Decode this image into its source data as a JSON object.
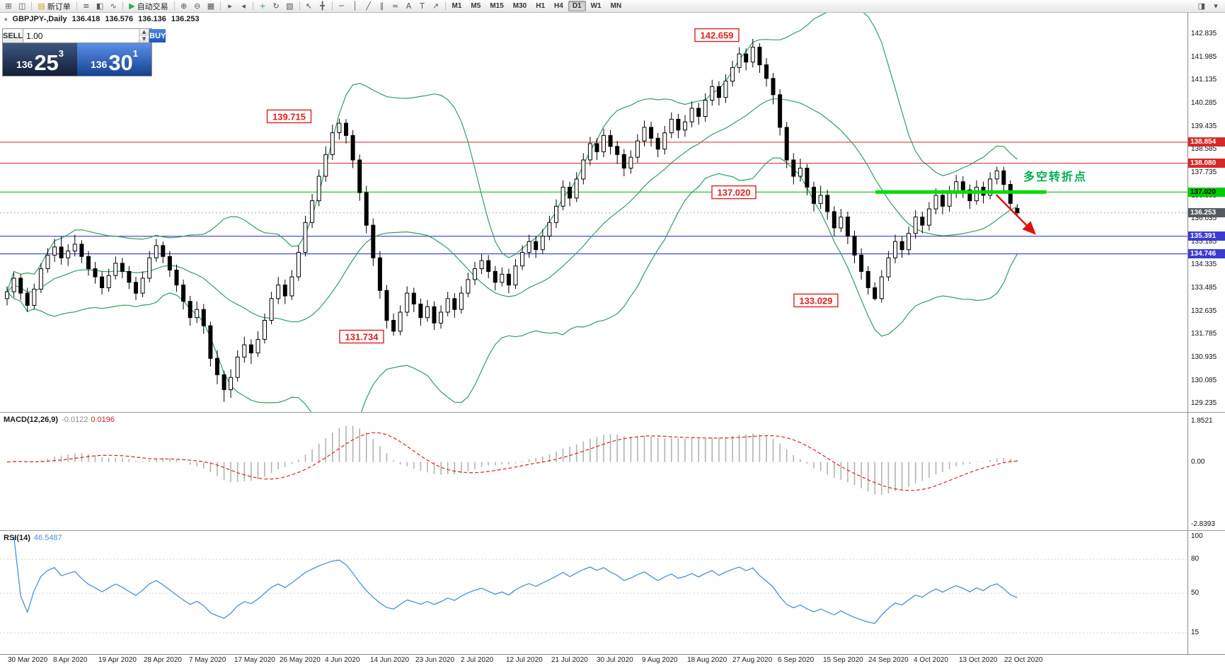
{
  "toolbar": {
    "items": [
      {
        "type": "icon",
        "name": "new-chart-icon",
        "glyph": "⊞"
      },
      {
        "type": "icon",
        "name": "window-layout-icon",
        "glyph": "◫"
      },
      {
        "type": "sep"
      },
      {
        "type": "button",
        "name": "new-order-button",
        "glyph": "▤",
        "glyph_color": "#c9a227",
        "label": "新订单"
      },
      {
        "type": "sep"
      },
      {
        "type": "icon",
        "name": "bar-chart-icon",
        "glyph": "≡"
      },
      {
        "type": "icon",
        "name": "candlestick-chart-icon",
        "glyph": "◧"
      },
      {
        "type": "icon",
        "name": "line-chart-icon",
        "glyph": "∿"
      },
      {
        "type": "sep"
      },
      {
        "type": "button",
        "name": "autotrading-button",
        "glyph": "▶",
        "glyph_color": "#2fa84f",
        "label": "自动交易"
      },
      {
        "type": "sep"
      },
      {
        "type": "icon",
        "name": "zoom-in-icon",
        "glyph": "⊕"
      },
      {
        "type": "icon",
        "name": "zoom-out-icon",
        "glyph": "⊖"
      },
      {
        "type": "icon",
        "name": "grid-icon",
        "glyph": "▦"
      },
      {
        "type": "sep"
      },
      {
        "type": "icon",
        "name": "auto-scroll-icon",
        "glyph": "▸"
      },
      {
        "type": "icon",
        "name": "chart-shift-icon",
        "glyph": "◂"
      },
      {
        "type": "sep"
      },
      {
        "type": "icon",
        "name": "indicators-icon",
        "glyph": "+",
        "glyph_color": "#2fa84f"
      },
      {
        "type": "icon",
        "name": "periods-icon",
        "glyph": "↻"
      },
      {
        "type": "icon",
        "name": "templates-icon",
        "glyph": "▧"
      },
      {
        "type": "sep"
      },
      {
        "type": "icon",
        "name": "cursor-icon",
        "glyph": "↖"
      },
      {
        "type": "icon",
        "name": "crosshair-icon",
        "glyph": "╋"
      },
      {
        "type": "sep"
      },
      {
        "type": "icon",
        "name": "horizontal-line-icon",
        "glyph": "─"
      },
      {
        "type": "icon",
        "name": "vertical-line-icon",
        "glyph": "│"
      },
      {
        "type": "icon",
        "name": "trendline-icon",
        "glyph": "╱"
      },
      {
        "type": "icon",
        "name": "channel-icon",
        "glyph": "∥"
      },
      {
        "type": "icon",
        "name": "fibonacci-icon",
        "glyph": "≈"
      },
      {
        "type": "icon",
        "name": "text-icon",
        "glyph": "A"
      },
      {
        "type": "icon",
        "name": "text-label-icon",
        "glyph": "T"
      },
      {
        "type": "icon",
        "name": "arrow-objects-icon",
        "glyph": "↗"
      },
      {
        "type": "sep"
      }
    ],
    "timeframes": [
      {
        "label": "M1"
      },
      {
        "label": "M5"
      },
      {
        "label": "M15"
      },
      {
        "label": "M30"
      },
      {
        "label": "H1"
      },
      {
        "label": "H4"
      },
      {
        "label": "D1",
        "active": true
      },
      {
        "label": "W1"
      },
      {
        "label": "MN"
      }
    ],
    "right_icons": [
      {
        "name": "chart-panel-icon",
        "glyph": "◨"
      },
      {
        "name": "more-options-icon",
        "glyph": "▾"
      }
    ]
  },
  "quote_bar": {
    "symbol": "GBPJPY-,Daily",
    "open": "136.418",
    "high": "136.576",
    "low": "136.136",
    "close": "136.253"
  },
  "trade_panel": {
    "sell_label": "SELL",
    "buy_label": "BUY",
    "volume": "1.00",
    "sell_big_figure": "136",
    "sell_pips": "25",
    "sell_pipette": "3",
    "buy_big_figure": "136",
    "buy_pips": "30",
    "buy_pipette": "1"
  },
  "macd_panel": {
    "label": "MACD(12,26,9)",
    "main_value": "-0.0122",
    "signal_value": "0.0196",
    "scale": [
      "1.8521",
      "0.00",
      "-2.8393"
    ]
  },
  "rsi_panel": {
    "label": "RSI(14)",
    "value": "46.5487",
    "scale": [
      "100",
      "80",
      "50",
      "15"
    ]
  },
  "chart_data": {
    "type": "candlestick",
    "symbol": "GBPJPY",
    "timeframe": "Daily",
    "price_axis": {
      "top": 142.835,
      "step": 0.85,
      "ticks": [
        "142.835",
        "141.985",
        "141.135",
        "140.285",
        "139.435",
        "138.585",
        "137.735",
        "136.885",
        "136.035",
        "135.185",
        "134.335",
        "133.485",
        "132.635",
        "131.785",
        "130.935",
        "130.085",
        "129.235"
      ]
    },
    "date_labels": [
      "30 Mar 2020",
      "8 Apr 2020",
      "19 Apr 2020",
      "28 Apr 2020",
      "7 May 2020",
      "17 May 2020",
      "26 May 2020",
      "4 Jun 2020",
      "14 Jun 2020",
      "23 Jun 2020",
      "2 Jul 2020",
      "12 Jul 2020",
      "21 Jul 2020",
      "30 Jul 2020",
      "9 Aug 2020",
      "18 Aug 2020",
      "27 Aug 2020",
      "6 Sep 2020",
      "15 Sep 2020",
      "24 Sep 2020",
      "4 Oct 2020",
      "13 Oct 2020",
      "22 Oct 2020"
    ],
    "candle_style": {
      "up_fill": "#ffffff",
      "down_fill": "#000000",
      "outline": "#000000"
    },
    "candles": [
      [
        133.1,
        133.55,
        132.85,
        133.35
      ],
      [
        133.35,
        134.05,
        133.15,
        133.85
      ],
      [
        133.85,
        134.0,
        133.05,
        133.3
      ],
      [
        133.3,
        133.5,
        132.6,
        132.85
      ],
      [
        132.85,
        133.65,
        132.7,
        133.45
      ],
      [
        133.45,
        134.4,
        133.3,
        134.2
      ],
      [
        134.2,
        134.95,
        134.05,
        134.7
      ],
      [
        134.7,
        135.3,
        134.45,
        135.0
      ],
      [
        135.0,
        135.4,
        134.35,
        134.6
      ],
      [
        134.6,
        135.1,
        134.3,
        134.85
      ],
      [
        134.85,
        135.45,
        134.65,
        135.1
      ],
      [
        135.1,
        135.25,
        134.4,
        134.65
      ],
      [
        134.65,
        134.85,
        133.95,
        134.2
      ],
      [
        134.2,
        134.45,
        133.65,
        133.9
      ],
      [
        133.9,
        134.1,
        133.25,
        133.5
      ],
      [
        133.5,
        134.2,
        133.35,
        133.95
      ],
      [
        133.95,
        134.65,
        133.8,
        134.4
      ],
      [
        134.4,
        134.6,
        133.85,
        134.1
      ],
      [
        134.1,
        134.3,
        133.45,
        133.7
      ],
      [
        133.7,
        133.9,
        133.05,
        133.3
      ],
      [
        133.3,
        134.1,
        133.15,
        133.85
      ],
      [
        133.85,
        134.85,
        133.7,
        134.6
      ],
      [
        134.6,
        135.3,
        134.45,
        135.05
      ],
      [
        135.05,
        135.2,
        134.4,
        134.65
      ],
      [
        134.65,
        134.85,
        133.9,
        134.15
      ],
      [
        134.15,
        134.35,
        133.35,
        133.6
      ],
      [
        133.6,
        133.8,
        132.7,
        133.0
      ],
      [
        133.0,
        133.2,
        132.1,
        132.4
      ],
      [
        132.4,
        133.0,
        132.2,
        132.7
      ],
      [
        132.7,
        132.9,
        131.8,
        132.1
      ],
      [
        132.1,
        132.25,
        130.6,
        130.9
      ],
      [
        130.9,
        131.2,
        129.95,
        130.3
      ],
      [
        130.3,
        130.45,
        129.3,
        129.75
      ],
      [
        129.75,
        130.5,
        129.45,
        130.2
      ],
      [
        130.2,
        131.2,
        130.05,
        130.95
      ],
      [
        130.95,
        131.7,
        130.75,
        131.4
      ],
      [
        131.4,
        131.6,
        130.7,
        131.1
      ],
      [
        131.1,
        131.9,
        130.95,
        131.6
      ],
      [
        131.6,
        132.55,
        131.45,
        132.3
      ],
      [
        132.3,
        133.35,
        132.15,
        133.1
      ],
      [
        133.1,
        133.9,
        132.9,
        133.6
      ],
      [
        133.6,
        133.8,
        132.9,
        133.2
      ],
      [
        133.2,
        134.15,
        133.05,
        133.9
      ],
      [
        133.9,
        135.05,
        133.75,
        134.8
      ],
      [
        134.8,
        136.15,
        134.65,
        135.9
      ],
      [
        135.9,
        136.95,
        135.7,
        136.7
      ],
      [
        136.7,
        137.85,
        136.5,
        137.6
      ],
      [
        137.6,
        138.7,
        137.4,
        138.4
      ],
      [
        138.4,
        139.5,
        138.2,
        139.2
      ],
      [
        139.2,
        139.715,
        138.95,
        139.55
      ],
      [
        139.55,
        139.7,
        138.8,
        139.1
      ],
      [
        139.1,
        139.3,
        137.9,
        138.2
      ],
      [
        138.2,
        138.4,
        136.7,
        137.0
      ],
      [
        137.0,
        137.25,
        135.5,
        135.8
      ],
      [
        135.8,
        136.05,
        134.3,
        134.6
      ],
      [
        134.6,
        134.85,
        133.1,
        133.4
      ],
      [
        133.4,
        133.6,
        132.0,
        132.3
      ],
      [
        132.3,
        132.55,
        131.734,
        131.9
      ],
      [
        131.9,
        132.85,
        131.75,
        132.6
      ],
      [
        132.6,
        133.55,
        132.45,
        133.3
      ],
      [
        133.3,
        133.5,
        132.6,
        132.9
      ],
      [
        132.9,
        133.1,
        132.1,
        132.4
      ],
      [
        132.4,
        133.05,
        132.25,
        132.8
      ],
      [
        132.8,
        133.0,
        131.95,
        132.2
      ],
      [
        132.2,
        132.85,
        132.0,
        132.6
      ],
      [
        132.6,
        133.35,
        132.45,
        133.1
      ],
      [
        133.1,
        133.3,
        132.4,
        132.7
      ],
      [
        132.7,
        133.55,
        132.55,
        133.3
      ],
      [
        133.3,
        134.05,
        133.15,
        133.8
      ],
      [
        133.8,
        134.45,
        133.6,
        134.2
      ],
      [
        134.2,
        134.75,
        134.0,
        134.5
      ],
      [
        134.5,
        134.7,
        133.85,
        134.1
      ],
      [
        134.1,
        134.3,
        133.4,
        133.7
      ],
      [
        133.7,
        134.25,
        133.55,
        134.0
      ],
      [
        134.0,
        134.2,
        133.3,
        133.6
      ],
      [
        133.6,
        134.55,
        133.45,
        134.3
      ],
      [
        134.3,
        135.05,
        134.15,
        134.8
      ],
      [
        134.8,
        135.45,
        134.6,
        135.2
      ],
      [
        135.2,
        135.4,
        134.6,
        134.9
      ],
      [
        134.9,
        135.65,
        134.75,
        135.4
      ],
      [
        135.4,
        136.15,
        135.25,
        135.9
      ],
      [
        135.9,
        136.75,
        135.7,
        136.5
      ],
      [
        136.5,
        137.45,
        136.35,
        137.2
      ],
      [
        137.2,
        137.4,
        136.5,
        136.8
      ],
      [
        136.8,
        137.75,
        136.65,
        137.5
      ],
      [
        137.5,
        138.45,
        137.3,
        138.2
      ],
      [
        138.2,
        139.05,
        138.0,
        138.8
      ],
      [
        138.8,
        139.0,
        138.2,
        138.5
      ],
      [
        138.5,
        139.35,
        138.3,
        139.1
      ],
      [
        139.1,
        139.3,
        138.4,
        138.7
      ],
      [
        138.7,
        138.9,
        138.05,
        138.4
      ],
      [
        138.4,
        138.6,
        137.6,
        137.9
      ],
      [
        137.9,
        138.55,
        137.7,
        138.3
      ],
      [
        138.3,
        139.15,
        138.1,
        138.9
      ],
      [
        138.9,
        139.65,
        138.7,
        139.4
      ],
      [
        139.4,
        139.6,
        138.7,
        139.0
      ],
      [
        139.0,
        139.2,
        138.3,
        138.6
      ],
      [
        138.6,
        139.45,
        138.4,
        139.2
      ],
      [
        139.2,
        139.95,
        139.0,
        139.7
      ],
      [
        139.7,
        139.9,
        139.0,
        139.3
      ],
      [
        139.3,
        139.85,
        139.05,
        139.6
      ],
      [
        139.6,
        140.35,
        139.4,
        140.1
      ],
      [
        140.1,
        140.3,
        139.5,
        139.8
      ],
      [
        139.8,
        140.65,
        139.6,
        140.4
      ],
      [
        140.4,
        141.15,
        140.2,
        140.9
      ],
      [
        140.9,
        141.1,
        140.2,
        140.5
      ],
      [
        140.5,
        141.35,
        140.3,
        141.1
      ],
      [
        141.1,
        141.85,
        140.9,
        141.6
      ],
      [
        141.6,
        142.35,
        141.4,
        142.1
      ],
      [
        142.1,
        142.3,
        141.5,
        141.8
      ],
      [
        141.8,
        142.659,
        141.6,
        142.35
      ],
      [
        142.35,
        142.5,
        141.4,
        141.7
      ],
      [
        141.7,
        141.95,
        140.9,
        141.2
      ],
      [
        141.2,
        141.4,
        140.25,
        140.6
      ],
      [
        140.6,
        140.8,
        139.1,
        139.4
      ],
      [
        139.4,
        139.6,
        137.9,
        138.2
      ],
      [
        138.2,
        138.45,
        137.3,
        137.6
      ],
      [
        137.6,
        138.25,
        137.4,
        137.9
      ],
      [
        137.9,
        138.05,
        136.9,
        137.2
      ],
      [
        137.2,
        137.4,
        136.3,
        136.6
      ],
      [
        136.6,
        137.25,
        136.4,
        136.9
      ],
      [
        136.9,
        137.1,
        136.0,
        136.3
      ],
      [
        136.3,
        136.5,
        135.4,
        135.7
      ],
      [
        135.7,
        136.4,
        135.55,
        136.1
      ],
      [
        136.1,
        136.3,
        135.1,
        135.4
      ],
      [
        135.4,
        135.6,
        134.4,
        134.7
      ],
      [
        134.7,
        134.95,
        133.8,
        134.1
      ],
      [
        134.1,
        134.3,
        133.25,
        133.5
      ],
      [
        133.5,
        133.7,
        133.029,
        133.1
      ],
      [
        133.1,
        134.15,
        132.95,
        133.9
      ],
      [
        133.9,
        134.85,
        133.75,
        134.6
      ],
      [
        134.6,
        135.45,
        134.4,
        135.2
      ],
      [
        135.2,
        135.4,
        134.6,
        134.9
      ],
      [
        134.9,
        135.75,
        134.7,
        135.5
      ],
      [
        135.5,
        136.35,
        135.3,
        136.1
      ],
      [
        136.1,
        136.3,
        135.5,
        135.8
      ],
      [
        135.8,
        136.65,
        135.6,
        136.4
      ],
      [
        136.4,
        137.15,
        136.2,
        136.9
      ],
      [
        136.9,
        137.1,
        136.2,
        136.5
      ],
      [
        136.5,
        137.25,
        136.3,
        137.0
      ],
      [
        137.0,
        137.65,
        136.8,
        137.4
      ],
      [
        137.4,
        137.6,
        136.8,
        137.1
      ],
      [
        137.1,
        137.3,
        136.4,
        136.7
      ],
      [
        136.7,
        137.45,
        136.55,
        137.2
      ],
      [
        137.2,
        137.4,
        136.6,
        136.9
      ],
      [
        136.9,
        137.75,
        136.75,
        137.5
      ],
      [
        137.5,
        137.95,
        137.3,
        137.8
      ],
      [
        137.8,
        137.95,
        137.05,
        137.3
      ],
      [
        137.3,
        137.45,
        136.4,
        136.6
      ],
      [
        136.418,
        136.576,
        136.136,
        136.253
      ]
    ],
    "indicators": {
      "bollinger": {
        "period": 20,
        "deviation": 2,
        "color": "#2f9e63"
      },
      "macd": {
        "fast": 12,
        "slow": 26,
        "signal": 9,
        "histogram_color": "#b2b2b2",
        "signal_color": "#e02020",
        "range": [
          -2.8393,
          1.8521
        ]
      },
      "rsi": {
        "period": 14,
        "color": "#4a90d9",
        "levels": [
          80,
          50,
          15
        ],
        "range": [
          0,
          100
        ]
      }
    },
    "hlines": [
      {
        "price": 138.854,
        "color": "#e02020",
        "line_width": 1,
        "tag": "138.854",
        "tag_bg": "#d62929",
        "tag_fg": "#ffffff"
      },
      {
        "price": 138.08,
        "color": "#e02020",
        "line_width": 1,
        "tag": "138.080",
        "tag_bg": "#d62929",
        "tag_fg": "#ffffff"
      },
      {
        "price": 137.02,
        "color": "#00b000",
        "line_width": 1,
        "tag": "137.020",
        "tag_bg": "#00cc00",
        "tag_fg": "#000000"
      },
      {
        "price": 135.391,
        "color": "#2020d0",
        "line_width": 1,
        "tag": "135.391",
        "tag_bg": "#3b3bd0",
        "tag_fg": "#ffffff"
      },
      {
        "price": 134.746,
        "color": "#2020d0",
        "line_width": 1,
        "tag": "134.746",
        "tag_bg": "#3b3bd0",
        "tag_fg": "#ffffff"
      }
    ],
    "current_price": {
      "price": 136.253,
      "tag": "136.253",
      "tag_bg": "#555a60"
    },
    "price_labels": [
      {
        "text": "142.659",
        "i": 104.7,
        "price": 142.78
      },
      {
        "text": "139.715",
        "i": 41.6,
        "price": 139.79
      },
      {
        "text": "137.020",
        "i": 107.2,
        "price": 137.0
      },
      {
        "text": "133.029",
        "i": 119.3,
        "price": 133.02
      },
      {
        "text": "131.734",
        "i": 52.3,
        "price": 131.69
      }
    ],
    "green_segment": {
      "price": 137.02,
      "i_start": 128.1,
      "i_end": 153.3,
      "color": "#00dd00",
      "width": 5
    },
    "arrow": {
      "from_i": 145.9,
      "from_price": 136.92,
      "to_i": 151.6,
      "to_price": 135.49,
      "color": "#dd1111"
    },
    "note": {
      "text": "多空转折点",
      "i": 149.9,
      "price": 137.45,
      "color": "#00b050"
    }
  }
}
